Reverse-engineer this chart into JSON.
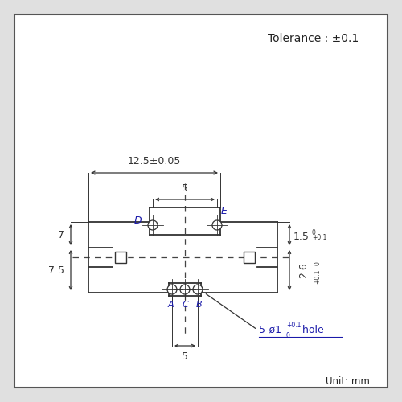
{
  "unit_text": "Unit: mm",
  "tolerance_text": "Tolerance : ±0.1",
  "dim_12_5": "12.5±0.05",
  "dim_5_top": "5",
  "dim_5_bot": "5",
  "dim_7": "7",
  "dim_7_5": "7.5",
  "dim_1_5": "1.5",
  "dim_1_5_tol": "+0.1\n  0",
  "dim_2_6": "2.6",
  "dim_2_6_tol": "+0.1\n  0",
  "hole_label": "5-ø1",
  "hole_label_tol": "+0.1\n 0",
  "hole_label_suffix": " hole",
  "label_D": "D",
  "label_E": "E",
  "label_A": "A",
  "label_C": "C",
  "label_B": "B",
  "line_color": "#333333",
  "dash_color": "#444444",
  "text_color": "#1a1aaa",
  "dim_text_color": "#333333",
  "bg_color": "#ffffff",
  "border_color": "#555555",
  "outer_bg": "#e0e0e0"
}
